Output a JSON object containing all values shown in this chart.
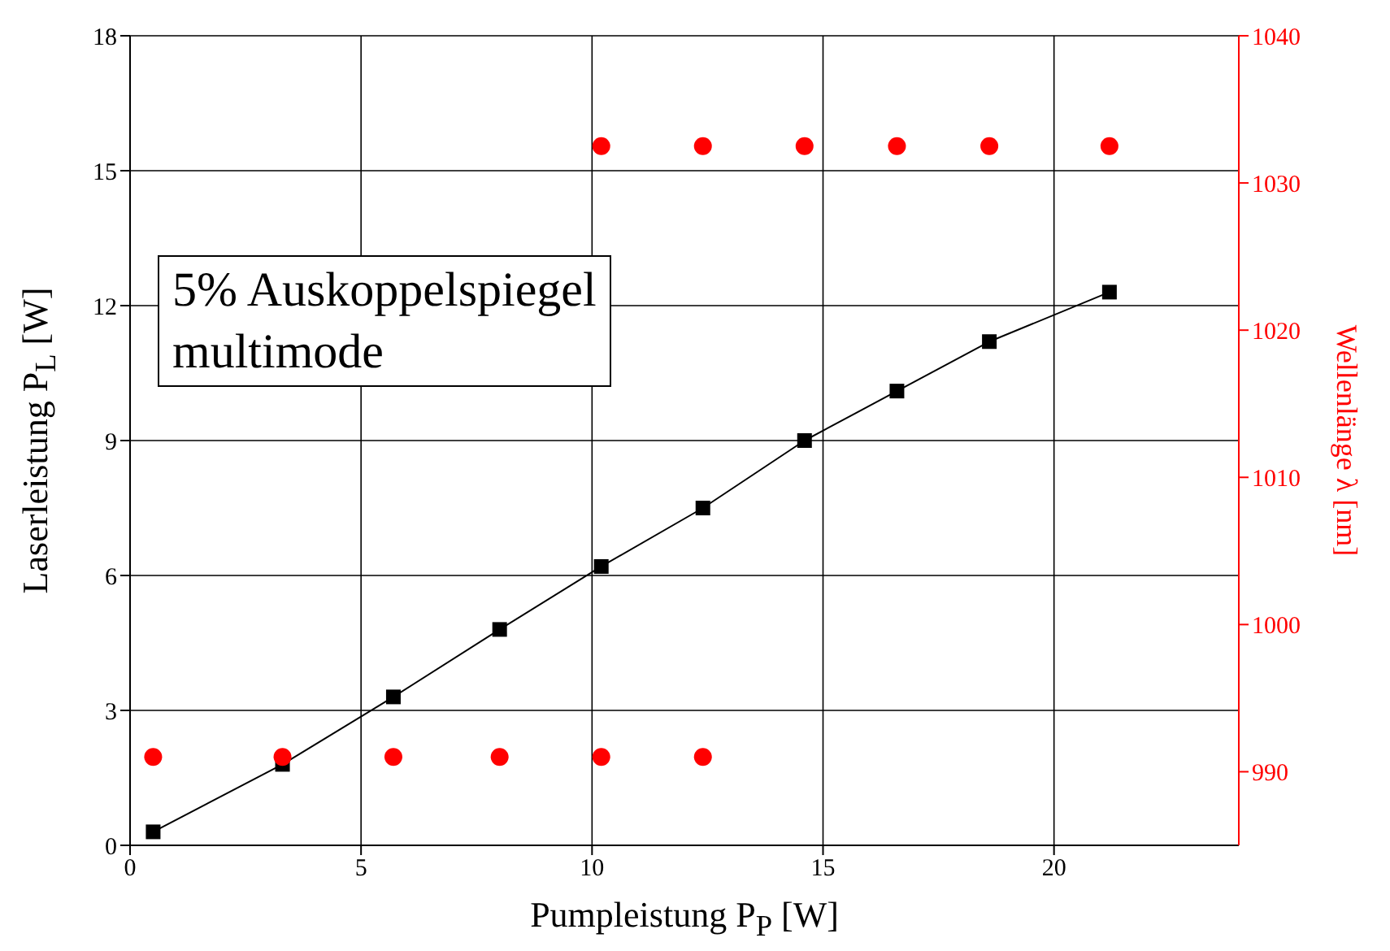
{
  "chart_data": {
    "type": "scatter",
    "xlabel": "Pumpleistung P$_{P}$ [W]",
    "ylabel": "Laserleistung P$_{L}$ [W]",
    "y2label": "Wellenlänge λ [nm]",
    "xlim": [
      0,
      24
    ],
    "xticks": [
      0,
      5,
      10,
      15,
      20
    ],
    "ylim": [
      0,
      18
    ],
    "yticks": [
      0,
      3,
      6,
      9,
      12,
      15,
      18
    ],
    "y2lim": [
      985,
      1040
    ],
    "y2ticks": [
      990,
      1000,
      1010,
      1020,
      1030,
      1040
    ],
    "grid": true,
    "annotations": [
      "5% Auskoppelspiegel\nmultimode"
    ],
    "series": [
      {
        "type": "line",
        "marker": "square",
        "line_style": "solid",
        "color": "#000000",
        "x": [
          0.5,
          3.3,
          5.7,
          8.0,
          10.2,
          12.4,
          14.6,
          16.6,
          18.6,
          21.2
        ],
        "values": [
          0.3,
          1.8,
          3.3,
          4.8,
          6.2,
          7.5,
          9.0,
          10.1,
          11.2,
          12.3
        ]
      },
      {
        "marker": "circle",
        "axis": "y2",
        "color": "#ff0000",
        "x": [
          0.5,
          3.3,
          5.7,
          8.0,
          10.2,
          12.4
        ],
        "values": [
          991,
          991,
          991,
          991,
          991,
          991
        ]
      },
      {
        "marker": "circle",
        "axis": "y2",
        "color": "#ff0000",
        "x": [
          10.2,
          12.4,
          14.6,
          16.6,
          18.6,
          21.2
        ],
        "values": [
          1032.5,
          1032.5,
          1032.5,
          1032.5,
          1032.5,
          1032.5
        ]
      }
    ]
  }
}
